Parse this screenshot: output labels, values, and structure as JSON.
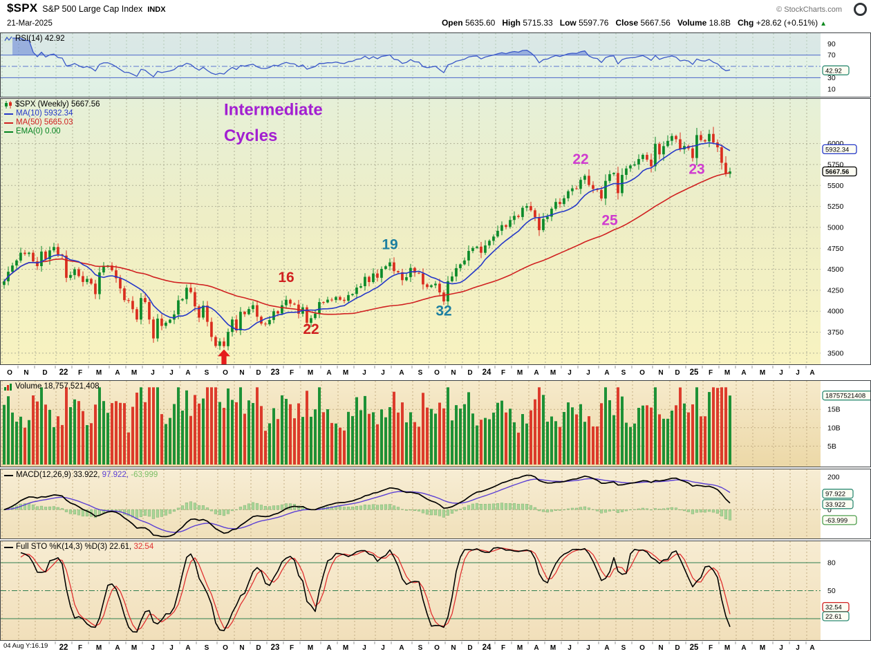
{
  "header": {
    "symbol": "$SPX",
    "name": "S&P 500 Large Cap Index",
    "exchange": "INDX",
    "date": "21-Mar-2025",
    "watermark": "© StockCharts.com",
    "quote": {
      "items": [
        {
          "k": "Open",
          "v": "5635.60"
        },
        {
          "k": "High",
          "v": "5715.33"
        },
        {
          "k": "Low",
          "v": "5597.76"
        },
        {
          "k": "Close",
          "v": "5667.56"
        },
        {
          "k": "Volume",
          "v": "18.8B"
        },
        {
          "k": "Chg",
          "v": "+28.62 (+0.51%)"
        }
      ],
      "arrow": "▲",
      "arrow_color": "#0c8a1e"
    }
  },
  "footnote": "04 Aug Y:16.19",
  "chart_data": [
    {
      "panel": "rsi",
      "type": "line",
      "label": "RSI(14) 42.92",
      "indicator": "RSI(14)",
      "current_value": 42.92,
      "ylim": [
        0,
        105
      ],
      "levels": {
        "upper": 70,
        "mid": 50,
        "lower": 30
      },
      "yticks": [
        90,
        70,
        30,
        10
      ],
      "badge": {
        "text": "42.92",
        "at": 42.92,
        "c": "#2e8b74"
      },
      "line_color": "#3a58c8",
      "level_color": "#5a74cc"
    },
    {
      "panel": "price",
      "type": "candlestick",
      "timeframe": "weekly",
      "label": "$SPX (Weekly) 5667.56",
      "x_axis": {
        "total_weeks": 197,
        "months": [
          {
            "l": "O",
            "w": 4
          },
          {
            "l": "N",
            "w": 4
          },
          {
            "l": "D",
            "w": 5
          },
          {
            "l": "22",
            "w": 4,
            "y": 1
          },
          {
            "l": "F",
            "w": 4
          },
          {
            "l": "M",
            "w": 5
          },
          {
            "l": "A",
            "w": 4
          },
          {
            "l": "M",
            "w": 4
          },
          {
            "l": "J",
            "w": 5
          },
          {
            "l": "J",
            "w": 4
          },
          {
            "l": "A",
            "w": 4
          },
          {
            "l": "S",
            "w": 5
          },
          {
            "l": "O",
            "w": 4
          },
          {
            "l": "N",
            "w": 4
          },
          {
            "l": "D",
            "w": 4
          },
          {
            "l": "23",
            "w": 4,
            "y": 1
          },
          {
            "l": "F",
            "w": 4
          },
          {
            "l": "M",
            "w": 5
          },
          {
            "l": "A",
            "w": 4
          },
          {
            "l": "M",
            "w": 4
          },
          {
            "l": "J",
            "w": 5
          },
          {
            "l": "J",
            "w": 4
          },
          {
            "l": "A",
            "w": 5
          },
          {
            "l": "S",
            "w": 4
          },
          {
            "l": "O",
            "w": 4
          },
          {
            "l": "N",
            "w": 4
          },
          {
            "l": "D",
            "w": 4
          },
          {
            "l": "24",
            "w": 4,
            "y": 1
          },
          {
            "l": "F",
            "w": 4
          },
          {
            "l": "M",
            "w": 4
          },
          {
            "l": "A",
            "w": 4
          },
          {
            "l": "M",
            "w": 4
          },
          {
            "l": "J",
            "w": 4
          },
          {
            "l": "J",
            "w": 5
          },
          {
            "l": "A",
            "w": 4
          },
          {
            "l": "S",
            "w": 4
          },
          {
            "l": "O",
            "w": 5
          },
          {
            "l": "N",
            "w": 4
          },
          {
            "l": "D",
            "w": 4
          },
          {
            "l": "25",
            "w": 4,
            "y": 1
          },
          {
            "l": "F",
            "w": 4
          },
          {
            "l": "M",
            "w": 4
          },
          {
            "l": "A",
            "w": 4
          },
          {
            "l": "M",
            "w": 5
          },
          {
            "l": "J",
            "w": 4
          },
          {
            "l": "J",
            "w": 4
          },
          {
            "l": "A",
            "w": 3
          }
        ]
      },
      "closes": [
        4357,
        4471,
        4545,
        4605,
        4698,
        4683,
        4698,
        4595,
        4538,
        4712,
        4621,
        4726,
        4766,
        4677,
        4663,
        4398,
        4432,
        4501,
        4419,
        4349,
        4385,
        4329,
        4204,
        4463,
        4543,
        4545,
        4488,
        4393,
        4272,
        4132,
        4123,
        4024,
        3901,
        4158,
        4109,
        3901,
        3675,
        3912,
        3825,
        3863,
        3899,
        3962,
        4130,
        4145,
        4280,
        4228,
        4058,
        3924,
        4067,
        3873,
        3693,
        3586,
        3640,
        3583,
        3753,
        3901,
        3771,
        3993,
        3965,
        4026,
        4072,
        3934,
        3852,
        3845,
        3895,
        3999,
        3973,
        4071,
        4136,
        4090,
        4079,
        3970,
        4046,
        3862,
        3917,
        3971,
        4109,
        4105,
        4138,
        4134,
        4169,
        4136,
        4124,
        4192,
        4205,
        4282,
        4299,
        4410,
        4348,
        4450,
        4399,
        4505,
        4536,
        4582,
        4478,
        4464,
        4370,
        4406,
        4516,
        4458,
        4450,
        4320,
        4288,
        4309,
        4328,
        4224,
        4117,
        4358,
        4415,
        4514,
        4559,
        4605,
        4719,
        4755,
        4770,
        4697,
        4784,
        4840,
        4891,
        4959,
        5027,
        5006,
        5088,
        5137,
        5124,
        5234,
        5254,
        5204,
        5123,
        4967,
        5100,
        5128,
        5223,
        5303,
        5278,
        5347,
        5431,
        5465,
        5460,
        5567,
        5615,
        5505,
        5459,
        5446,
        5344,
        5554,
        5634,
        5648,
        5408,
        5626,
        5703,
        5738,
        5751,
        5815,
        5865,
        5808,
        5729,
        5996,
        5871,
        5969,
        6032,
        6090,
        6051,
        5931,
        5971,
        5942,
        5827,
        6101,
        6041,
        6026,
        6115,
        6013,
        5955,
        5770,
        5639,
        5667.56
      ],
      "ylim": [
        3400,
        6500
      ],
      "yticks": [
        6000,
        5750,
        5500,
        5250,
        5000,
        4750,
        4500,
        4250,
        4000,
        3750,
        3500
      ],
      "overlays": [
        {
          "label": "MA(10) 5932.34",
          "period": 10,
          "value": 5932.34,
          "color": "#2437c8"
        },
        {
          "label": "MA(50) 5665.03",
          "period": 50,
          "value": 5665.03,
          "color": "#d02020"
        },
        {
          "label": "EMA(0) 0.00",
          "period": 0,
          "value": 0.0,
          "color": "#00821e"
        }
      ],
      "badges": [
        {
          "text": "5932.34",
          "at": 5932.34,
          "c": "#2437c8"
        },
        {
          "text": "5667.56",
          "at": 5667.56,
          "c": "#000000",
          "bold": true
        }
      ],
      "annotations": [
        {
          "type": "text",
          "text": "Intermediate",
          "week": 53,
          "price": 6340,
          "color": "#a21fd1",
          "size": 24,
          "bold": true,
          "anchor": "start"
        },
        {
          "type": "text",
          "text": "Cycles",
          "week": 53,
          "price": 6030,
          "color": "#a21fd1",
          "size": 24,
          "bold": true,
          "anchor": "start"
        },
        {
          "type": "text",
          "text": "16",
          "week": 68,
          "price": 4350,
          "color": "#d02020",
          "size": 21,
          "bold": true
        },
        {
          "type": "text",
          "text": "22",
          "week": 74,
          "price": 3730,
          "color": "#d02020",
          "size": 21,
          "bold": true
        },
        {
          "type": "text",
          "text": "19",
          "week": 93,
          "price": 4740,
          "color": "#1d7fa0",
          "size": 21,
          "bold": true
        },
        {
          "type": "text",
          "text": "32",
          "week": 106,
          "price": 3950,
          "color": "#1d7fa0",
          "size": 21,
          "bold": true
        },
        {
          "type": "text",
          "text": "22",
          "week": 139,
          "price": 5760,
          "color": "#cf3ccf",
          "size": 21,
          "bold": true
        },
        {
          "type": "text",
          "text": "25",
          "week": 146,
          "price": 5030,
          "color": "#cf3ccf",
          "size": 21,
          "bold": true
        },
        {
          "type": "text",
          "text": "23",
          "week": 167,
          "price": 5640,
          "color": "#cf3ccf",
          "size": 21,
          "bold": true
        },
        {
          "type": "arrow-up",
          "week": 53,
          "price": 3545,
          "color": "#e51d1d",
          "size": 22
        }
      ],
      "up_color": "#0b8a2a",
      "down_color": "#da2d1e"
    },
    {
      "panel": "volume",
      "type": "bar",
      "label": "Volume 18,757,521,408",
      "last_volume": 18757521408,
      "ylim": [
        0,
        22000000000
      ],
      "yticks": [
        {
          "v": 15000000000,
          "t": "15B"
        },
        {
          "v": 10000000000,
          "t": "10B"
        },
        {
          "v": 5000000000,
          "t": "5B"
        }
      ],
      "badge": {
        "text": "18757521408",
        "at": 18757521408,
        "c": "#2e8b74"
      }
    },
    {
      "panel": "macd",
      "type": "line+histogram",
      "label_parts": [
        {
          "t": "MACD(12,26,9) 33.922, ",
          "c": "#000000"
        },
        {
          "t": "97.922, ",
          "c": "#5b3fd4"
        },
        {
          "t": "-63.999",
          "c": "#7cbf66"
        }
      ],
      "macd": 33.922,
      "signal": 97.922,
      "hist": -63.999,
      "ylim": [
        -160,
        230
      ],
      "yticks": [
        200,
        0
      ],
      "badges": [
        {
          "text": "97.922",
          "at": 97.922,
          "c": "#2e8b74"
        },
        {
          "text": "33.922",
          "at": 33.922,
          "c": "#2e8b74"
        },
        {
          "text": "-63.999",
          "at": -63.999,
          "c": "#4f9e4f"
        }
      ],
      "colors": {
        "macd": "#000000",
        "signal": "#5b3fd4",
        "hist_fill": "#a9d598",
        "hist_stroke": "#86b274"
      }
    },
    {
      "panel": "sto",
      "type": "line",
      "label_parts": [
        {
          "t": "Full STO %K(14,3) %D(3) 22.61, ",
          "c": "#000000"
        },
        {
          "t": "32.54",
          "c": "#e03030"
        }
      ],
      "k": 22.61,
      "d": 32.54,
      "ylim": [
        0,
        100
      ],
      "levels": {
        "upper": 80,
        "mid": 50,
        "lower": 20
      },
      "yticks": [
        80,
        50
      ],
      "badges": [
        {
          "text": "32.54",
          "at": 32.54,
          "c": "#d02020"
        },
        {
          "text": "22.61",
          "at": 22.61,
          "c": "#2e8b74"
        }
      ],
      "colors": {
        "k": "#000000",
        "d": "#e03030",
        "level": "#2e7d4f"
      }
    }
  ]
}
